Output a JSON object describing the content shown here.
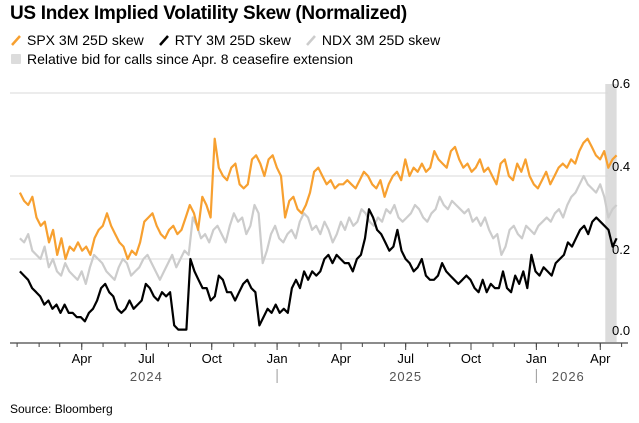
{
  "title": "US Index Implied Volatility Skew (Normalized)",
  "source": "Source: Bloomberg",
  "legend": [
    {
      "label": "SPX 3M 25D skew",
      "color": "#f7a030",
      "icon": "line-swatch-icon"
    },
    {
      "label": "RTY 3M 25D skew",
      "color": "#000000",
      "icon": "line-swatch-icon"
    },
    {
      "label": "NDX 3M 25D skew",
      "color": "#cccccc",
      "icon": "line-swatch-icon"
    },
    {
      "label": "Relative bid for calls since Apr. 8 ceasefire extension",
      "color": "#dcdcdc",
      "icon": "square-swatch-icon"
    }
  ],
  "chart_data": {
    "type": "line",
    "title": "US Index Implied Volatility Skew (Normalized)",
    "xlabel": "",
    "ylabel": "",
    "ylim": [
      0.0,
      0.6
    ],
    "yticks": [
      0.0,
      0.2,
      0.4,
      0.6
    ],
    "ytick_labels": [
      "0.0",
      "0.2",
      "0.4",
      "0.6"
    ],
    "grid": true,
    "x_start": "2024-01-05",
    "x_step_weeks": 1,
    "xlim": [
      "2023-12-22",
      "2026-05-10"
    ],
    "xticks": [
      {
        "label": "Apr",
        "date": "2024-04-01"
      },
      {
        "label": "Jul",
        "date": "2024-07-01"
      },
      {
        "label": "Oct",
        "date": "2024-10-01"
      },
      {
        "label": "Jan",
        "date": "2025-01-01"
      },
      {
        "label": "Apr",
        "date": "2025-04-01"
      },
      {
        "label": "Jul",
        "date": "2025-07-01"
      },
      {
        "label": "Oct",
        "date": "2025-10-01"
      },
      {
        "label": "Jan",
        "date": "2026-01-01"
      },
      {
        "label": "Apr",
        "date": "2026-04-01"
      }
    ],
    "years": [
      {
        "label": "2024",
        "date": "2024-07-01"
      },
      {
        "label": "2025",
        "date": "2025-07-01"
      },
      {
        "label": "2026",
        "date": "2026-02-15"
      }
    ],
    "year_dividers": [
      "2025-01-01",
      "2026-01-01"
    ],
    "shaded_region": {
      "from": "2026-04-08",
      "to": "2026-04-24",
      "label": "Relative bid for calls since Apr. 8 ceasefire extension"
    },
    "legend_position": "top-left",
    "series": [
      {
        "name": "SPX 3M 25D skew",
        "color": "#f7a030",
        "values": [
          0.36,
          0.34,
          0.33,
          0.35,
          0.3,
          0.28,
          0.29,
          0.24,
          0.27,
          0.21,
          0.25,
          0.2,
          0.23,
          0.22,
          0.24,
          0.22,
          0.23,
          0.21,
          0.25,
          0.27,
          0.28,
          0.31,
          0.28,
          0.26,
          0.24,
          0.23,
          0.2,
          0.22,
          0.21,
          0.24,
          0.29,
          0.3,
          0.31,
          0.28,
          0.26,
          0.25,
          0.27,
          0.28,
          0.26,
          0.27,
          0.3,
          0.33,
          0.31,
          0.27,
          0.35,
          0.33,
          0.3,
          0.49,
          0.42,
          0.4,
          0.39,
          0.42,
          0.43,
          0.38,
          0.37,
          0.38,
          0.44,
          0.45,
          0.43,
          0.4,
          0.44,
          0.45,
          0.42,
          0.4,
          0.3,
          0.34,
          0.35,
          0.32,
          0.31,
          0.33,
          0.36,
          0.41,
          0.42,
          0.4,
          0.38,
          0.39,
          0.37,
          0.38,
          0.38,
          0.39,
          0.38,
          0.37,
          0.39,
          0.41,
          0.4,
          0.38,
          0.37,
          0.39,
          0.35,
          0.38,
          0.4,
          0.41,
          0.39,
          0.44,
          0.4,
          0.42,
          0.41,
          0.43,
          0.41,
          0.42,
          0.46,
          0.44,
          0.43,
          0.42,
          0.46,
          0.47,
          0.44,
          0.42,
          0.43,
          0.41,
          0.42,
          0.44,
          0.41,
          0.42,
          0.4,
          0.38,
          0.43,
          0.44,
          0.4,
          0.39,
          0.43,
          0.41,
          0.44,
          0.4,
          0.38,
          0.37,
          0.39,
          0.41,
          0.38,
          0.4,
          0.42,
          0.43,
          0.42,
          0.44,
          0.43,
          0.46,
          0.48,
          0.49,
          0.47,
          0.45,
          0.44,
          0.46,
          0.42,
          0.44,
          0.45
        ]
      },
      {
        "name": "RTY 3M 25D skew",
        "color": "#000000",
        "values": [
          0.17,
          0.16,
          0.15,
          0.13,
          0.12,
          0.11,
          0.09,
          0.1,
          0.08,
          0.09,
          0.07,
          0.09,
          0.07,
          0.07,
          0.06,
          0.06,
          0.05,
          0.07,
          0.08,
          0.1,
          0.13,
          0.14,
          0.12,
          0.11,
          0.08,
          0.07,
          0.08,
          0.1,
          0.08,
          0.09,
          0.1,
          0.14,
          0.13,
          0.11,
          0.1,
          0.12,
          0.11,
          0.12,
          0.04,
          0.03,
          0.03,
          0.03,
          0.2,
          0.17,
          0.15,
          0.13,
          0.13,
          0.1,
          0.11,
          0.16,
          0.15,
          0.12,
          0.12,
          0.1,
          0.12,
          0.14,
          0.15,
          0.13,
          0.12,
          0.04,
          0.06,
          0.08,
          0.07,
          0.09,
          0.07,
          0.08,
          0.07,
          0.13,
          0.15,
          0.13,
          0.17,
          0.15,
          0.17,
          0.16,
          0.17,
          0.2,
          0.21,
          0.19,
          0.21,
          0.2,
          0.19,
          0.19,
          0.17,
          0.2,
          0.21,
          0.25,
          0.32,
          0.3,
          0.27,
          0.26,
          0.24,
          0.22,
          0.23,
          0.27,
          0.22,
          0.2,
          0.19,
          0.17,
          0.18,
          0.2,
          0.16,
          0.15,
          0.15,
          0.16,
          0.19,
          0.17,
          0.16,
          0.15,
          0.14,
          0.15,
          0.16,
          0.15,
          0.13,
          0.12,
          0.15,
          0.12,
          0.14,
          0.13,
          0.13,
          0.17,
          0.13,
          0.12,
          0.16,
          0.14,
          0.17,
          0.13,
          0.21,
          0.17,
          0.16,
          0.18,
          0.17,
          0.16,
          0.19,
          0.2,
          0.21,
          0.24,
          0.23,
          0.25,
          0.27,
          0.28,
          0.26,
          0.29,
          0.3,
          0.29,
          0.28,
          0.27,
          0.23,
          0.25
        ]
      },
      {
        "name": "NDX 3M 25D skew",
        "color": "#cccccc",
        "values": [
          0.25,
          0.24,
          0.26,
          0.22,
          0.21,
          0.2,
          0.23,
          0.18,
          0.2,
          0.17,
          0.16,
          0.19,
          0.17,
          0.16,
          0.15,
          0.17,
          0.14,
          0.18,
          0.21,
          0.2,
          0.19,
          0.17,
          0.16,
          0.15,
          0.18,
          0.2,
          0.19,
          0.16,
          0.17,
          0.18,
          0.2,
          0.21,
          0.19,
          0.17,
          0.15,
          0.17,
          0.19,
          0.21,
          0.18,
          0.2,
          0.22,
          0.21,
          0.3,
          0.28,
          0.25,
          0.26,
          0.24,
          0.27,
          0.28,
          0.26,
          0.24,
          0.28,
          0.31,
          0.29,
          0.3,
          0.26,
          0.28,
          0.33,
          0.31,
          0.19,
          0.22,
          0.26,
          0.28,
          0.25,
          0.24,
          0.26,
          0.27,
          0.25,
          0.29,
          0.31,
          0.3,
          0.27,
          0.28,
          0.26,
          0.29,
          0.27,
          0.24,
          0.26,
          0.29,
          0.27,
          0.3,
          0.28,
          0.29,
          0.32,
          0.31,
          0.29,
          0.28,
          0.3,
          0.29,
          0.32,
          0.31,
          0.33,
          0.3,
          0.29,
          0.3,
          0.31,
          0.33,
          0.32,
          0.3,
          0.29,
          0.31,
          0.32,
          0.35,
          0.33,
          0.32,
          0.34,
          0.33,
          0.32,
          0.31,
          0.32,
          0.29,
          0.3,
          0.28,
          0.3,
          0.27,
          0.25,
          0.26,
          0.21,
          0.23,
          0.27,
          0.28,
          0.26,
          0.25,
          0.28,
          0.27,
          0.26,
          0.28,
          0.29,
          0.3,
          0.29,
          0.31,
          0.32,
          0.3,
          0.33,
          0.35,
          0.36,
          0.38,
          0.4,
          0.38,
          0.37,
          0.36,
          0.38,
          0.35,
          0.3,
          0.32,
          0.33
        ]
      }
    ]
  }
}
